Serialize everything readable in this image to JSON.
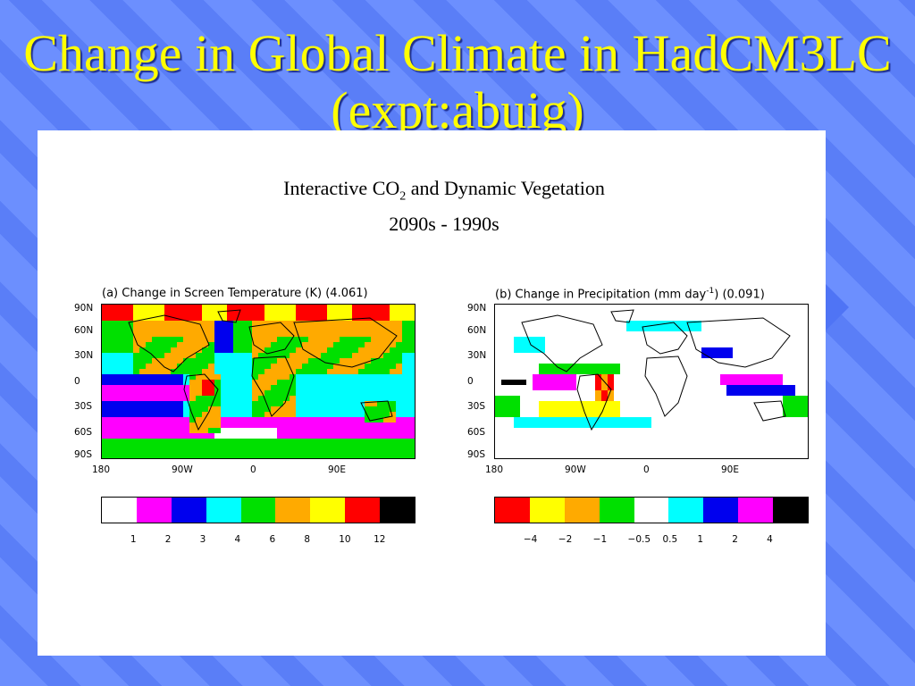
{
  "slide": {
    "title": "Change in Global Climate in HadCM3LC (expt:abuig)",
    "caption_line1_pre": "Interactive CO",
    "caption_line1_sub": "2",
    "caption_line1_post": " and Dynamic Vegetation",
    "caption_line2": "2090s - 1990s"
  },
  "panel_a": {
    "title": "(a) Change in Screen Temperature (K)  (4.061)",
    "lat_labels": [
      "90N",
      "60N",
      "30N",
      "0",
      "30S",
      "60S",
      "90S"
    ],
    "lon_labels": [
      "180",
      "90W",
      "0",
      "90E"
    ],
    "colorbar_colors": [
      "#ffffff",
      "#ff00ff",
      "#0000ee",
      "#00ffff",
      "#00e000",
      "#ffaa00",
      "#ffff00",
      "#ff0000",
      "#000000"
    ],
    "colorbar_ticks": [
      "1",
      "2",
      "3",
      "4",
      "6",
      "8",
      "10",
      "12"
    ]
  },
  "panel_b": {
    "title_pre": "(b) Change in Precipitation (mm day",
    "title_sup": "-1",
    "title_post": ")  (0.091)",
    "lat_labels": [
      "90N",
      "60N",
      "30N",
      "0",
      "30S",
      "60S",
      "90S"
    ],
    "lon_labels": [
      "180",
      "90W",
      "0",
      "90E"
    ],
    "colorbar_colors": [
      "#ff0000",
      "#ffff00",
      "#ffaa00",
      "#00e000",
      "#ffffff",
      "#00ffff",
      "#0000ee",
      "#ff00ff",
      "#000000"
    ],
    "colorbar_ticks": [
      "−4",
      "−2",
      "−1",
      "−0.5",
      "0.5",
      "1",
      "2",
      "4"
    ]
  }
}
